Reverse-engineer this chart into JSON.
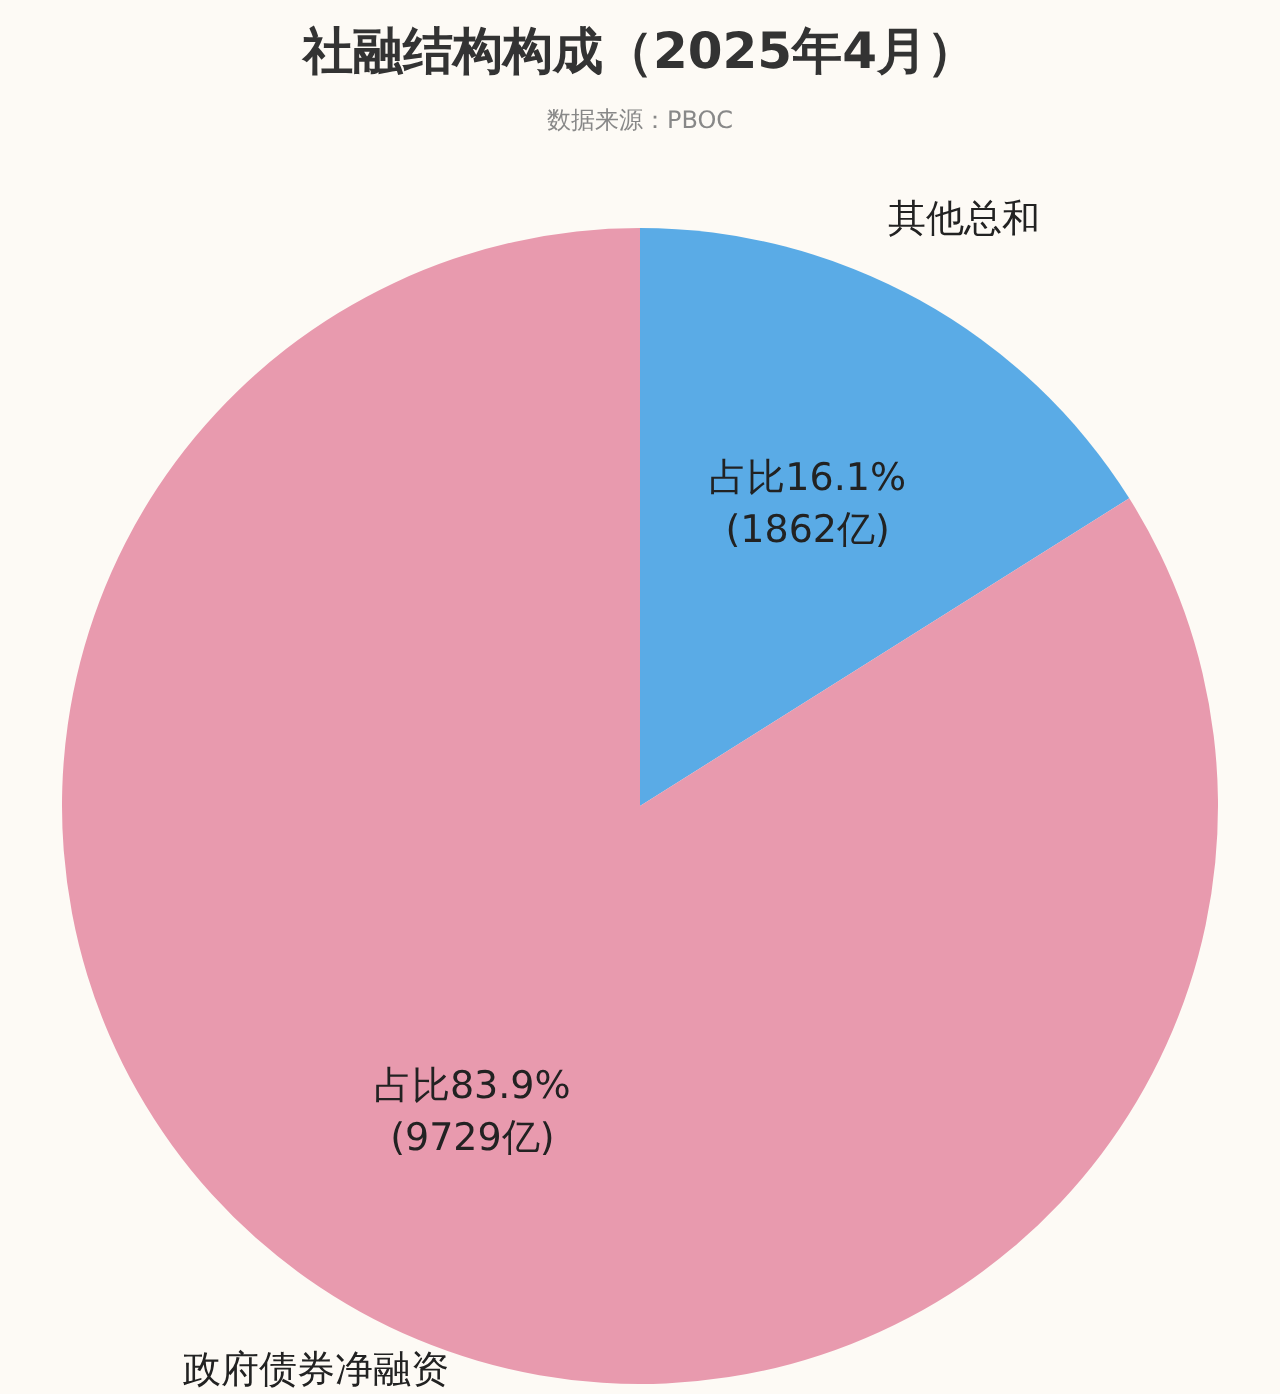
{
  "chart_data": {
    "type": "pie",
    "title": "社融结构构成（2025年4月）",
    "subtitle": "数据来源：PBOC",
    "categories": [
      "其他总和",
      "政府债券净融资"
    ],
    "values": [
      1862,
      9729
    ],
    "colors": [
      "#5aabe6",
      "#e89aae"
    ],
    "value_labels": [
      "占比16.1%\n(1862亿)",
      "占比83.9%\n(9729亿)"
    ],
    "legend": false
  }
}
